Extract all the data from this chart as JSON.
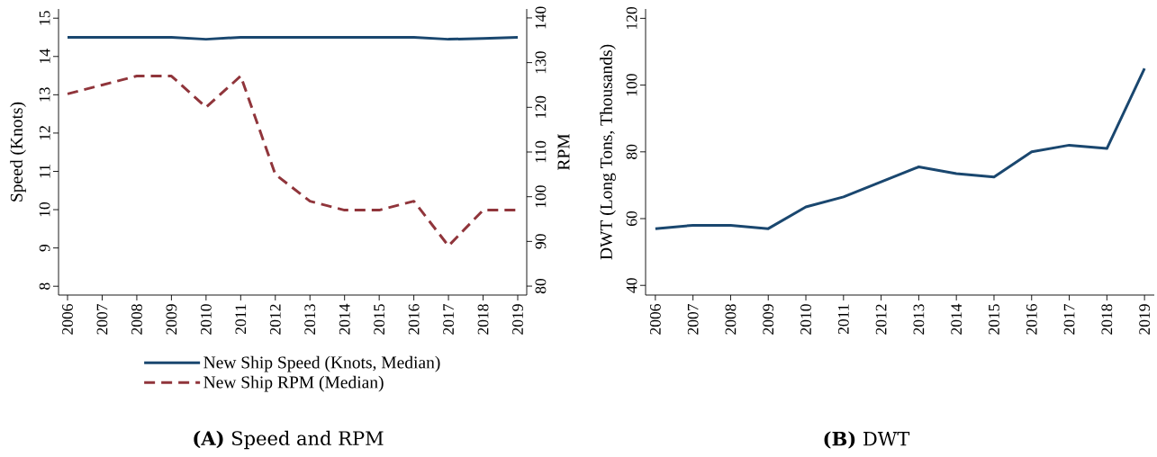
{
  "chart_data": [
    {
      "type": "line",
      "title": "**(A)** Speed and RPM",
      "ylabel": "Speed (Knots)",
      "y2label": "RPM",
      "categories": [
        "2006",
        "2007",
        "2008",
        "2009",
        "2010",
        "2011",
        "2012",
        "2013",
        "2014",
        "2015",
        "2016",
        "2017",
        "2018",
        "2019"
      ],
      "series": [
        {
          "name": "New Ship Speed (Knots, Median)",
          "color": "#1a476f",
          "line_style": "solid",
          "values": [
            14.5,
            14.5,
            14.5,
            14.5,
            14.45,
            14.5,
            14.5,
            14.5,
            14.5,
            14.5,
            14.5,
            14.45,
            14.47,
            14.5
          ]
        },
        {
          "name": "New Ship RPM (Median)",
          "color": "#90353b",
          "line_style": "dashed",
          "axis": "y2",
          "values": [
            123,
            125,
            127,
            127,
            120,
            127,
            105,
            99,
            97,
            97,
            99,
            89,
            97,
            97
          ]
        }
      ],
      "ylim": [
        7.77,
        15.24
      ],
      "yticks": [
        8,
        9,
        10,
        11,
        12,
        13,
        14,
        15
      ],
      "y2lim": [
        78,
        142
      ],
      "y2ticks": [
        80,
        90,
        100,
        110,
        120,
        130,
        140
      ],
      "legend": "bottom"
    },
    {
      "type": "line",
      "title": "**(B)** DWT",
      "ylabel": "DWT (Long Tons, Thousands)",
      "categories": [
        "2006",
        "2007",
        "2008",
        "2009",
        "2010",
        "2011",
        "2012",
        "2013",
        "2014",
        "2015",
        "2016",
        "2017",
        "2018",
        "2019"
      ],
      "series": [
        {
          "color": "#1a476f",
          "line_style": "solid",
          "values": [
            57,
            58,
            58,
            57,
            63.5,
            66.5,
            71,
            75.5,
            73.5,
            72.5,
            80,
            82,
            81,
            105
          ]
        }
      ],
      "ylim": [
        37.1,
        122.8
      ],
      "yticks": [
        40,
        60,
        80,
        100,
        120
      ]
    }
  ]
}
